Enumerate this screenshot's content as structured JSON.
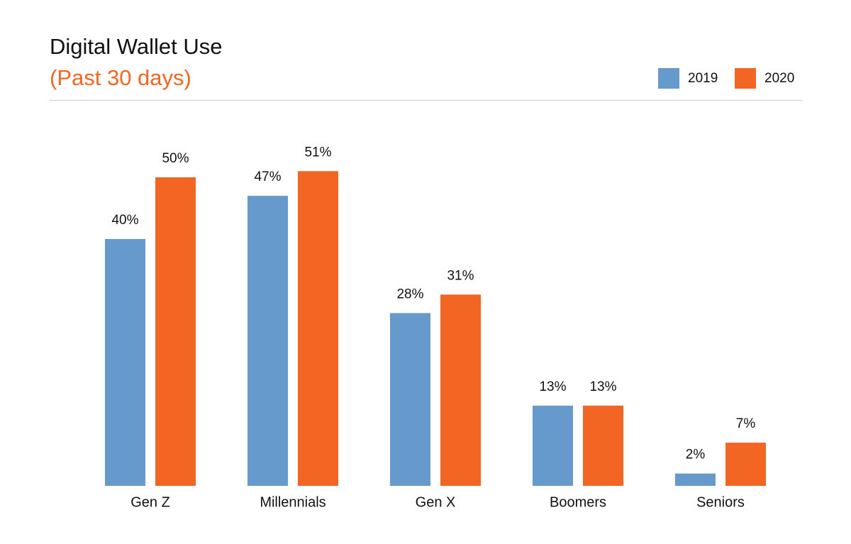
{
  "chart_data": {
    "type": "bar",
    "title": "Digital Wallet Use",
    "subtitle": "(Past 30 days)",
    "categories": [
      "Gen Z",
      "Millennials",
      "Gen X",
      "Boomers",
      "Seniors"
    ],
    "series": [
      {
        "name": "2019",
        "color": "#6699cc",
        "values": [
          40,
          47,
          28,
          13,
          2
        ],
        "value_labels": [
          "40%",
          "47%",
          "28%",
          "13%",
          "2%"
        ]
      },
      {
        "name": "2020",
        "color": "#f26522",
        "values": [
          50,
          51,
          31,
          13,
          7
        ],
        "value_labels": [
          "50%",
          "51%",
          "31%",
          "13%",
          "7%"
        ]
      }
    ],
    "ylim": [
      0,
      55
    ],
    "legend": "top-right",
    "subtitle_color": "#f26522"
  }
}
